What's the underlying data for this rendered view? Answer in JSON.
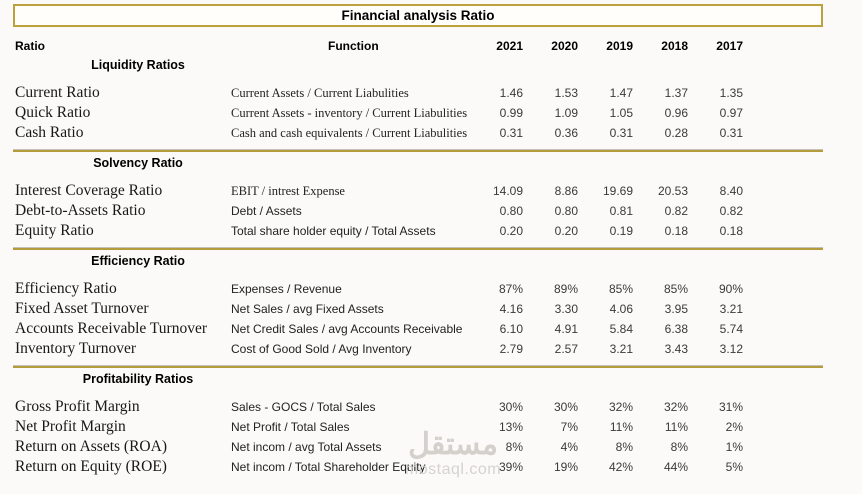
{
  "title": "Financial analysis Ratio",
  "columns": {
    "ratio": "Ratio",
    "function": "Function",
    "years": [
      "2021",
      "2020",
      "2019",
      "2018",
      "2017"
    ]
  },
  "sections": [
    {
      "header": "Liquidity Ratios",
      "rows": [
        {
          "name": "Current Ratio",
          "function": "Current Assets / Current Liabulities",
          "fn_serif": true,
          "values": [
            "1.46",
            "1.53",
            "1.47",
            "1.37",
            "1.35"
          ]
        },
        {
          "name": "Quick Ratio",
          "function": "Current Assets - inventory / Current Liabulities",
          "fn_serif": true,
          "values": [
            "0.99",
            "1.09",
            "1.05",
            "0.96",
            "0.97"
          ]
        },
        {
          "name": "Cash Ratio",
          "function": "Cash and cash equivalents / Current Liabulities",
          "fn_serif": true,
          "values": [
            "0.31",
            "0.36",
            "0.31",
            "0.28",
            "0.31"
          ]
        }
      ]
    },
    {
      "header": "Solvency Ratio",
      "rows": [
        {
          "name": "Interest Coverage Ratio",
          "function": "EBIT / intrest Expense",
          "fn_serif": true,
          "values": [
            "14.09",
            "8.86",
            "19.69",
            "20.53",
            "8.40"
          ]
        },
        {
          "name": "Debt-to-Assets Ratio",
          "function": "Debt / Assets",
          "fn_serif": false,
          "values": [
            "0.80",
            "0.80",
            "0.81",
            "0.82",
            "0.82"
          ]
        },
        {
          "name": "Equity Ratio",
          "function": "Total share holder equity / Total Assets",
          "fn_serif": false,
          "values": [
            "0.20",
            "0.20",
            "0.19",
            "0.18",
            "0.18"
          ]
        }
      ]
    },
    {
      "header": "Efficiency Ratio",
      "rows": [
        {
          "name": "Efficiency Ratio",
          "function": "Expenses / Revenue",
          "fn_serif": false,
          "values": [
            "87%",
            "89%",
            "85%",
            "85%",
            "90%"
          ]
        },
        {
          "name": "Fixed Asset Turnover",
          "function": "Net Sales / avg Fixed Assets",
          "fn_serif": false,
          "values": [
            "4.16",
            "3.30",
            "4.06",
            "3.95",
            "3.21"
          ]
        },
        {
          "name": "Accounts Receivable Turnover",
          "function": "Net Credit Sales / avg Accounts Receivable",
          "fn_serif": false,
          "values": [
            "6.10",
            "4.91",
            "5.84",
            "6.38",
            "5.74"
          ]
        },
        {
          "name": "Inventory Turnover",
          "function": "Cost of Good Sold / Avg Inventory",
          "fn_serif": false,
          "values": [
            "2.79",
            "2.57",
            "3.21",
            "3.43",
            "3.12"
          ]
        }
      ]
    },
    {
      "header": "Profitability Ratios",
      "rows": [
        {
          "name": "Gross Profit Margin",
          "function": "Sales - GOCS / Total Sales",
          "fn_serif": false,
          "values": [
            "30%",
            "30%",
            "32%",
            "32%",
            "31%"
          ]
        },
        {
          "name": "Net Profit Margin",
          "function": "Net Profit / Total Sales",
          "fn_serif": false,
          "values": [
            "13%",
            "7%",
            "11%",
            "11%",
            "2%"
          ]
        },
        {
          "name": "Return on Assets (ROA)",
          "function": "Net incom / avg Total Assets",
          "fn_serif": false,
          "values": [
            "8%",
            "4%",
            "8%",
            "8%",
            "1%"
          ]
        },
        {
          "name": "Return on Equity (ROE)",
          "function": "Net incom / Total Shareholder Equity",
          "fn_serif": false,
          "values": [
            "39%",
            "19%",
            "42%",
            "44%",
            "5%"
          ]
        }
      ]
    }
  ],
  "watermark": {
    "arabic": "مستقل",
    "domain": "mostaql.com"
  },
  "colors": {
    "gold": "#b49b3b",
    "header_text": "#000000",
    "value_text": "#3a3a3a",
    "watermark": "#d2cec9"
  }
}
